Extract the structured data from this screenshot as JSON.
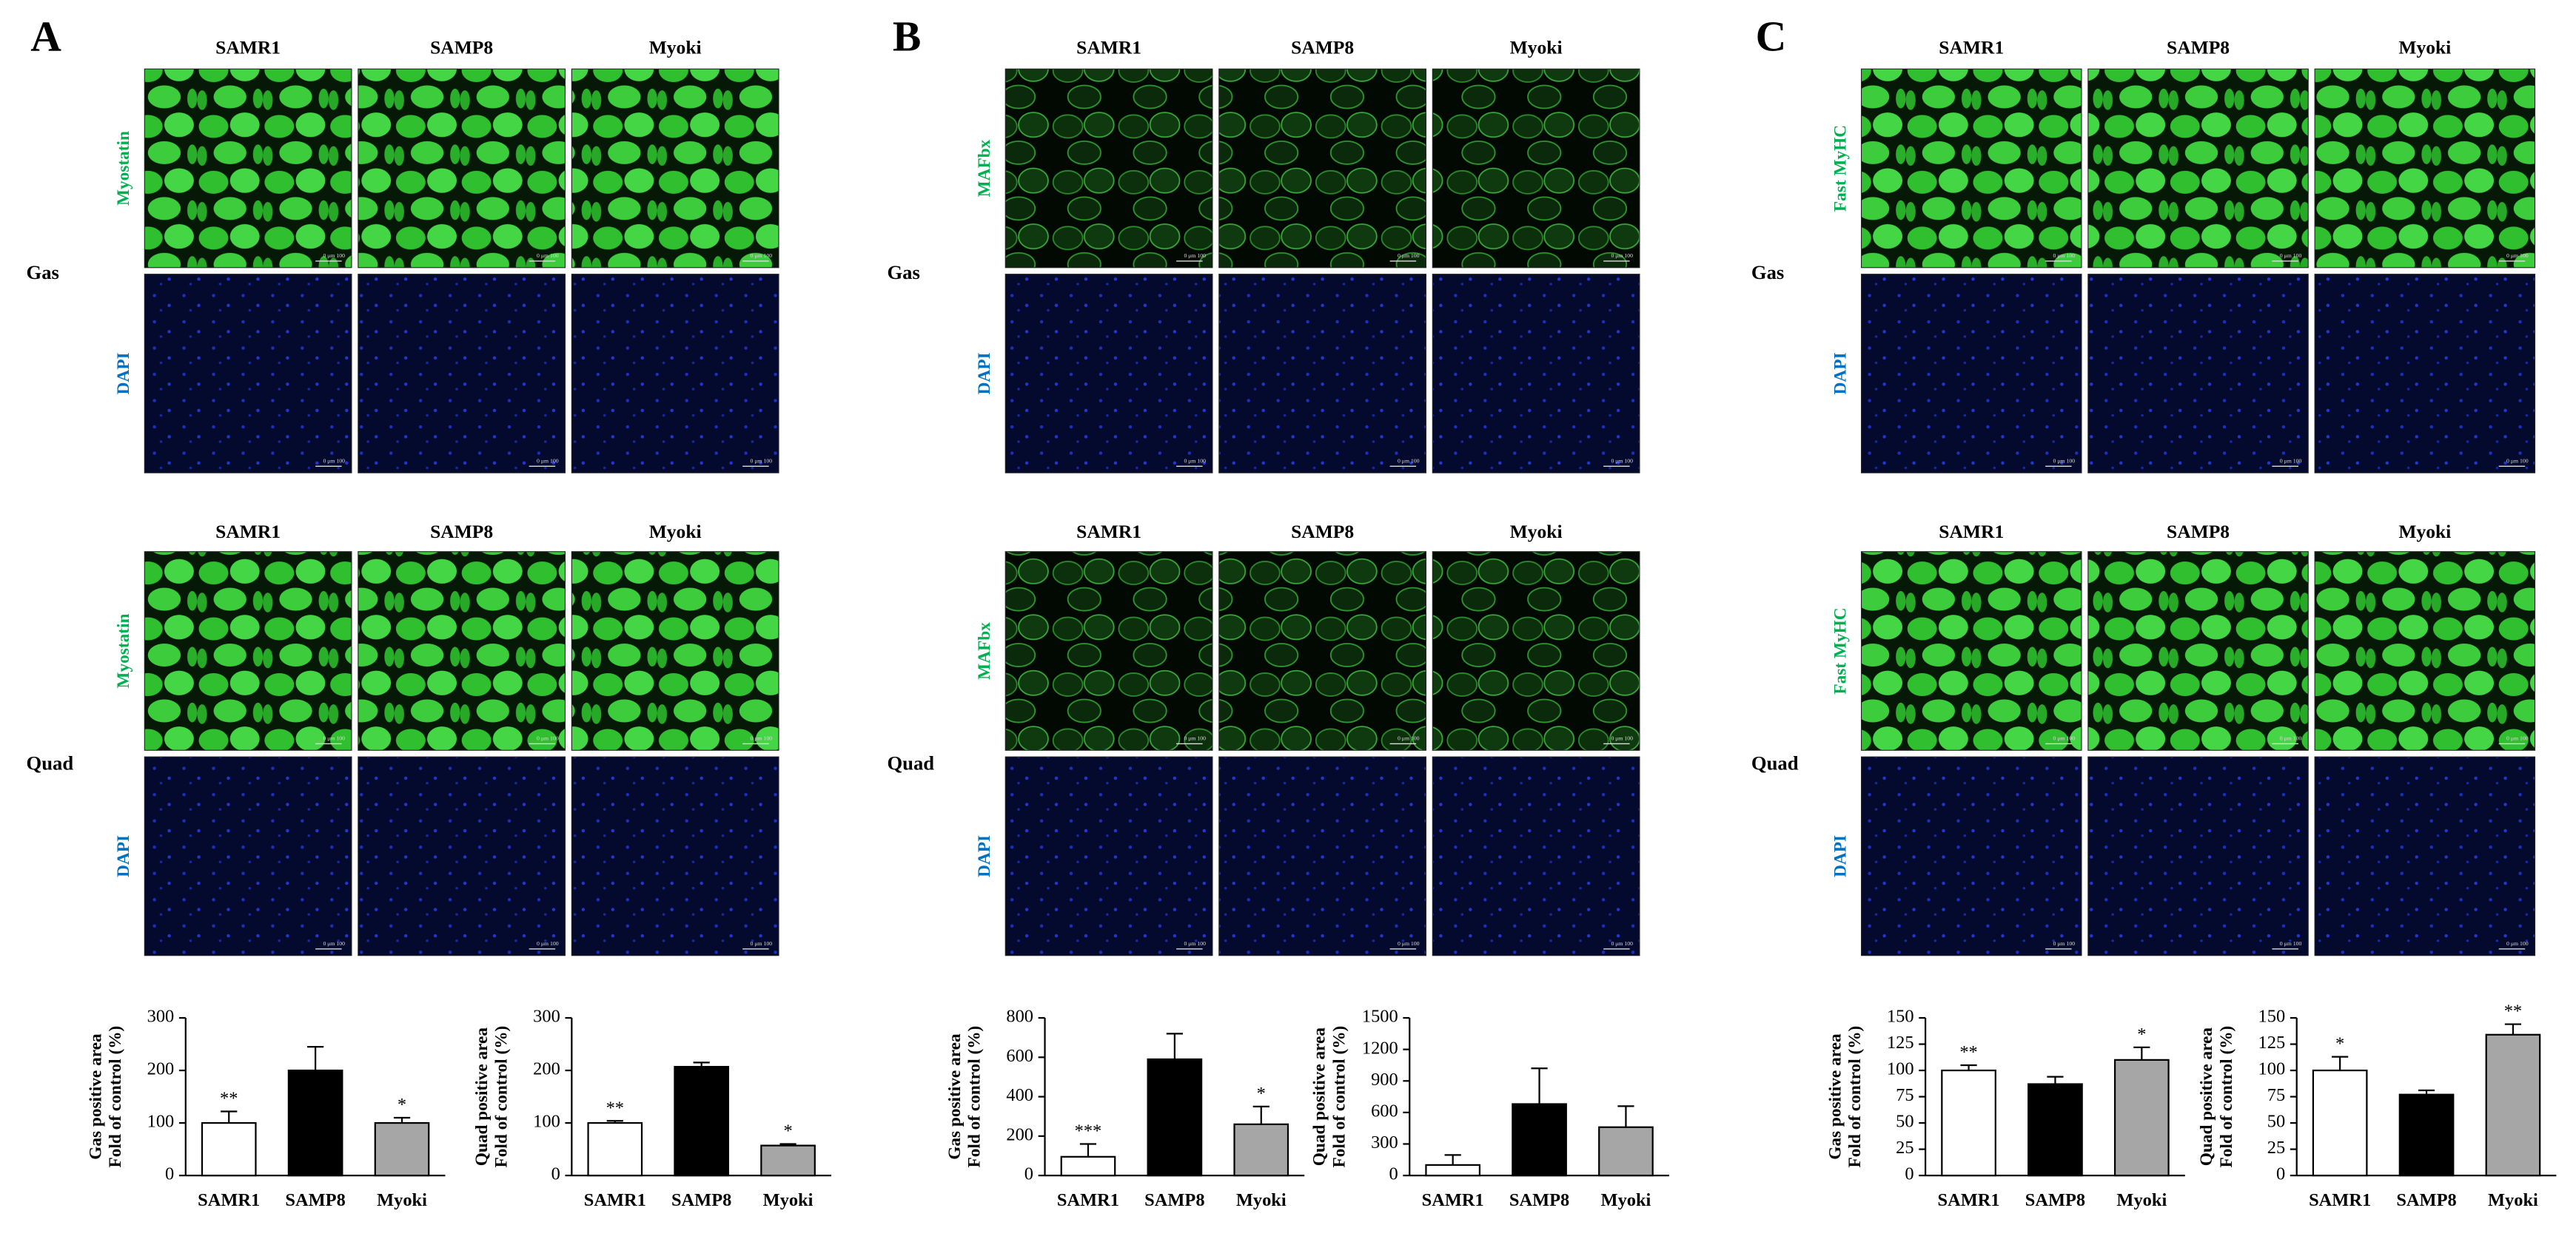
{
  "panels": [
    {
      "label": "A",
      "stain": "Myostatin",
      "counter_stain": "DAPI",
      "columns": [
        "SAMR1",
        "SAMP8",
        "Myoki"
      ],
      "rows": [
        "Gas",
        "Quad"
      ],
      "scale_bar": "0 μm 100"
    },
    {
      "label": "B",
      "stain": "MAFbx",
      "counter_stain": "DAPI",
      "columns": [
        "SAMR1",
        "SAMP8",
        "Myoki"
      ],
      "rows": [
        "Gas",
        "Quad"
      ],
      "scale_bar": "0 μm 100"
    },
    {
      "label": "C",
      "stain": "Fast MyHC",
      "counter_stain": "DAPI",
      "columns": [
        "SAMR1",
        "SAMP8",
        "Myoki"
      ],
      "rows": [
        "Gas",
        "Quad"
      ],
      "scale_bar": "0 μm 100"
    }
  ],
  "chart_data": [
    {
      "type": "bar",
      "ylabel": [
        "Gas positive area",
        "Fold of control (%)"
      ],
      "categories": [
        "SAMR1",
        "SAMP8",
        "Myoki"
      ],
      "values": [
        100,
        200,
        100
      ],
      "errors": [
        22,
        45,
        10
      ],
      "annotations": [
        "**",
        null,
        "*"
      ],
      "colors": [
        "#ffffff",
        "#000000",
        "#a6a6a6"
      ],
      "ylim": [
        0,
        300
      ],
      "yticks": [
        0,
        100,
        200,
        300
      ]
    },
    {
      "type": "bar",
      "ylabel": [
        "Quad positive area",
        "Fold of control (%)"
      ],
      "categories": [
        "SAMR1",
        "SAMP8",
        "Myoki"
      ],
      "values": [
        100,
        207,
        57
      ],
      "errors": [
        4,
        8,
        3
      ],
      "annotations": [
        "**",
        null,
        "*"
      ],
      "colors": [
        "#ffffff",
        "#000000",
        "#a6a6a6"
      ],
      "ylim": [
        0,
        300
      ],
      "yticks": [
        0,
        100,
        200,
        300
      ]
    },
    {
      "type": "bar",
      "ylabel": [
        "Gas positive area",
        "Fold of control (%)"
      ],
      "categories": [
        "SAMR1",
        "SAMP8",
        "Myoki"
      ],
      "values": [
        95,
        590,
        260
      ],
      "errors": [
        65,
        130,
        90
      ],
      "annotations": [
        "***",
        null,
        "*"
      ],
      "colors": [
        "#ffffff",
        "#000000",
        "#a6a6a6"
      ],
      "ylim": [
        0,
        800
      ],
      "yticks": [
        0,
        200,
        400,
        600,
        800
      ]
    },
    {
      "type": "bar",
      "ylabel": [
        "Quad positive area",
        "Fold of control (%)"
      ],
      "categories": [
        "SAMR1",
        "SAMP8",
        "Myoki"
      ],
      "values": [
        100,
        680,
        460
      ],
      "errors": [
        95,
        340,
        200
      ],
      "colors": [
        "#ffffff",
        "#000000",
        "#a6a6a6"
      ],
      "ylim": [
        0,
        1500
      ],
      "yticks": [
        0,
        300,
        600,
        900,
        1200,
        1500
      ]
    },
    {
      "type": "bar",
      "ylabel": [
        "Gas positive area",
        "Fold of control (%)"
      ],
      "categories": [
        "SAMR1",
        "SAMP8",
        "Myoki"
      ],
      "values": [
        100,
        87,
        110
      ],
      "errors": [
        5,
        7,
        12
      ],
      "annotations": [
        "**",
        null,
        "*"
      ],
      "colors": [
        "#ffffff",
        "#000000",
        "#a6a6a6"
      ],
      "ylim": [
        0,
        150
      ],
      "yticks": [
        0,
        25,
        50,
        75,
        100,
        125,
        150
      ]
    },
    {
      "type": "bar",
      "ylabel": [
        "Quad positive area",
        "Fold of control (%)"
      ],
      "categories": [
        "SAMR1",
        "SAMP8",
        "Myoki"
      ],
      "values": [
        100,
        77,
        134
      ],
      "errors": [
        13,
        4,
        10
      ],
      "annotations": [
        "*",
        null,
        "**"
      ],
      "colors": [
        "#ffffff",
        "#000000",
        "#a6a6a6"
      ],
      "ylim": [
        0,
        150
      ],
      "yticks": [
        0,
        25,
        50,
        75,
        100,
        125,
        150
      ]
    }
  ]
}
